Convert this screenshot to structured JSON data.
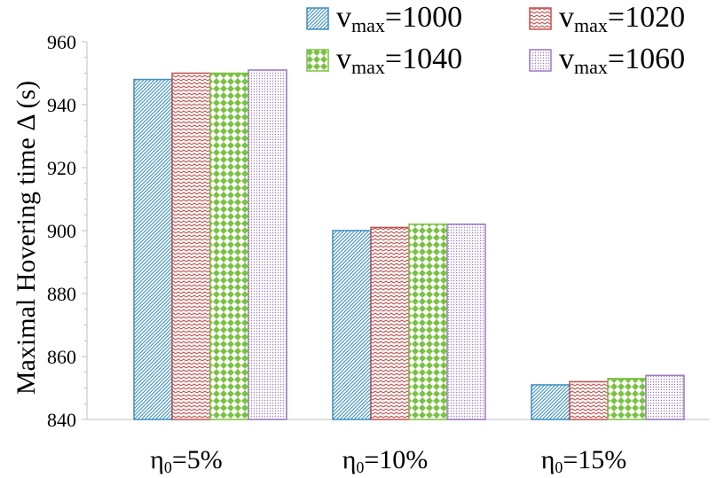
{
  "chart_data": {
    "type": "bar",
    "title": "",
    "ylabel": "Maximal Hovering time Δ (s)",
    "xlabel": "",
    "ylim": [
      840,
      960
    ],
    "yticks": [
      840,
      860,
      880,
      900,
      920,
      940,
      960
    ],
    "categories": [
      {
        "symbol": "η",
        "sub": "0",
        "rest": "=5%"
      },
      {
        "symbol": "η",
        "sub": "0",
        "rest": "=10%"
      },
      {
        "symbol": "η",
        "sub": "0",
        "rest": "=15%"
      }
    ],
    "series": [
      {
        "name_prefix": "v",
        "name_sub": "max",
        "name_value": "=1000",
        "values": [
          948,
          900,
          851
        ],
        "color": "#3c8fc0",
        "pattern": "diagonal"
      },
      {
        "name_prefix": "v",
        "name_sub": "max",
        "name_value": "=1020",
        "values": [
          950,
          901,
          852
        ],
        "color": "#c0504d",
        "pattern": "zigzag"
      },
      {
        "name_prefix": "v",
        "name_sub": "max",
        "name_value": "=1040",
        "values": [
          950,
          902,
          853
        ],
        "color": "#7ac143",
        "pattern": "checker"
      },
      {
        "name_prefix": "v",
        "name_sub": "max",
        "name_value": "=1060",
        "values": [
          951,
          902,
          854
        ],
        "color": "#9b7bc0",
        "pattern": "dots"
      }
    ],
    "legend_position": "top-right",
    "grid": false
  }
}
